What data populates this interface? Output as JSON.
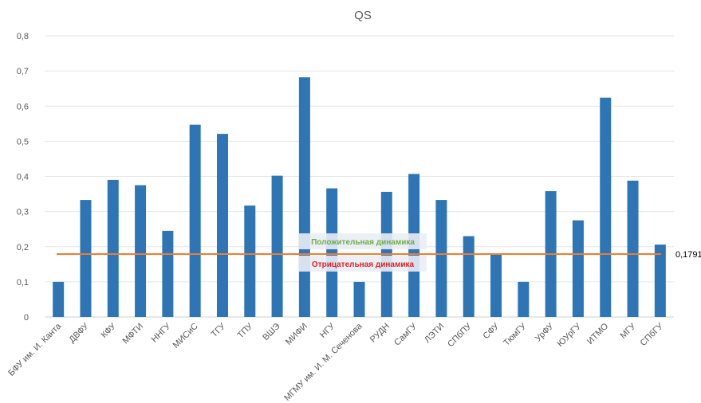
{
  "chart_data": {
    "type": "bar",
    "title": "QS",
    "xlabel": "",
    "ylabel": "",
    "ylim": [
      0,
      0.8
    ],
    "yticks": [
      "0",
      "0,1",
      "0,2",
      "0,3",
      "0,4",
      "0,5",
      "0,6",
      "0,7",
      "0,8"
    ],
    "grid": true,
    "bar_color": "#2E75B6",
    "categories": [
      "БФУ им. И. Канта",
      "ДВФУ",
      "КФУ",
      "МФТИ",
      "ННГУ",
      "МИСиС",
      "ТГУ",
      "ТПУ",
      "ВШЭ",
      "МИФИ",
      "НГУ",
      "МГМУ им. И. М. Сеченова",
      "РУДН",
      "СамГУ",
      "ЛЭТИ",
      "СПбПУ",
      "СФУ",
      "ТюмГУ",
      "УрФУ",
      "ЮУрГУ",
      "ИТМО",
      "МГУ",
      "СПбГУ"
    ],
    "values": [
      0.1,
      0.333,
      0.39,
      0.375,
      0.245,
      0.547,
      0.521,
      0.317,
      0.402,
      0.682,
      0.366,
      0.1,
      0.356,
      0.407,
      0.333,
      0.23,
      0.178,
      0.1,
      0.358,
      0.275,
      0.624,
      0.388,
      0.206
    ],
    "reference_line": {
      "value": 0.1791,
      "label": "0,1791",
      "color": "#ED7D31"
    },
    "annotations": [
      {
        "text": "Положительная динамика",
        "color": "#70AD47",
        "position": "above-line"
      },
      {
        "text": "Отрицательная динамика",
        "color": "#E02020",
        "position": "below-line"
      }
    ]
  }
}
